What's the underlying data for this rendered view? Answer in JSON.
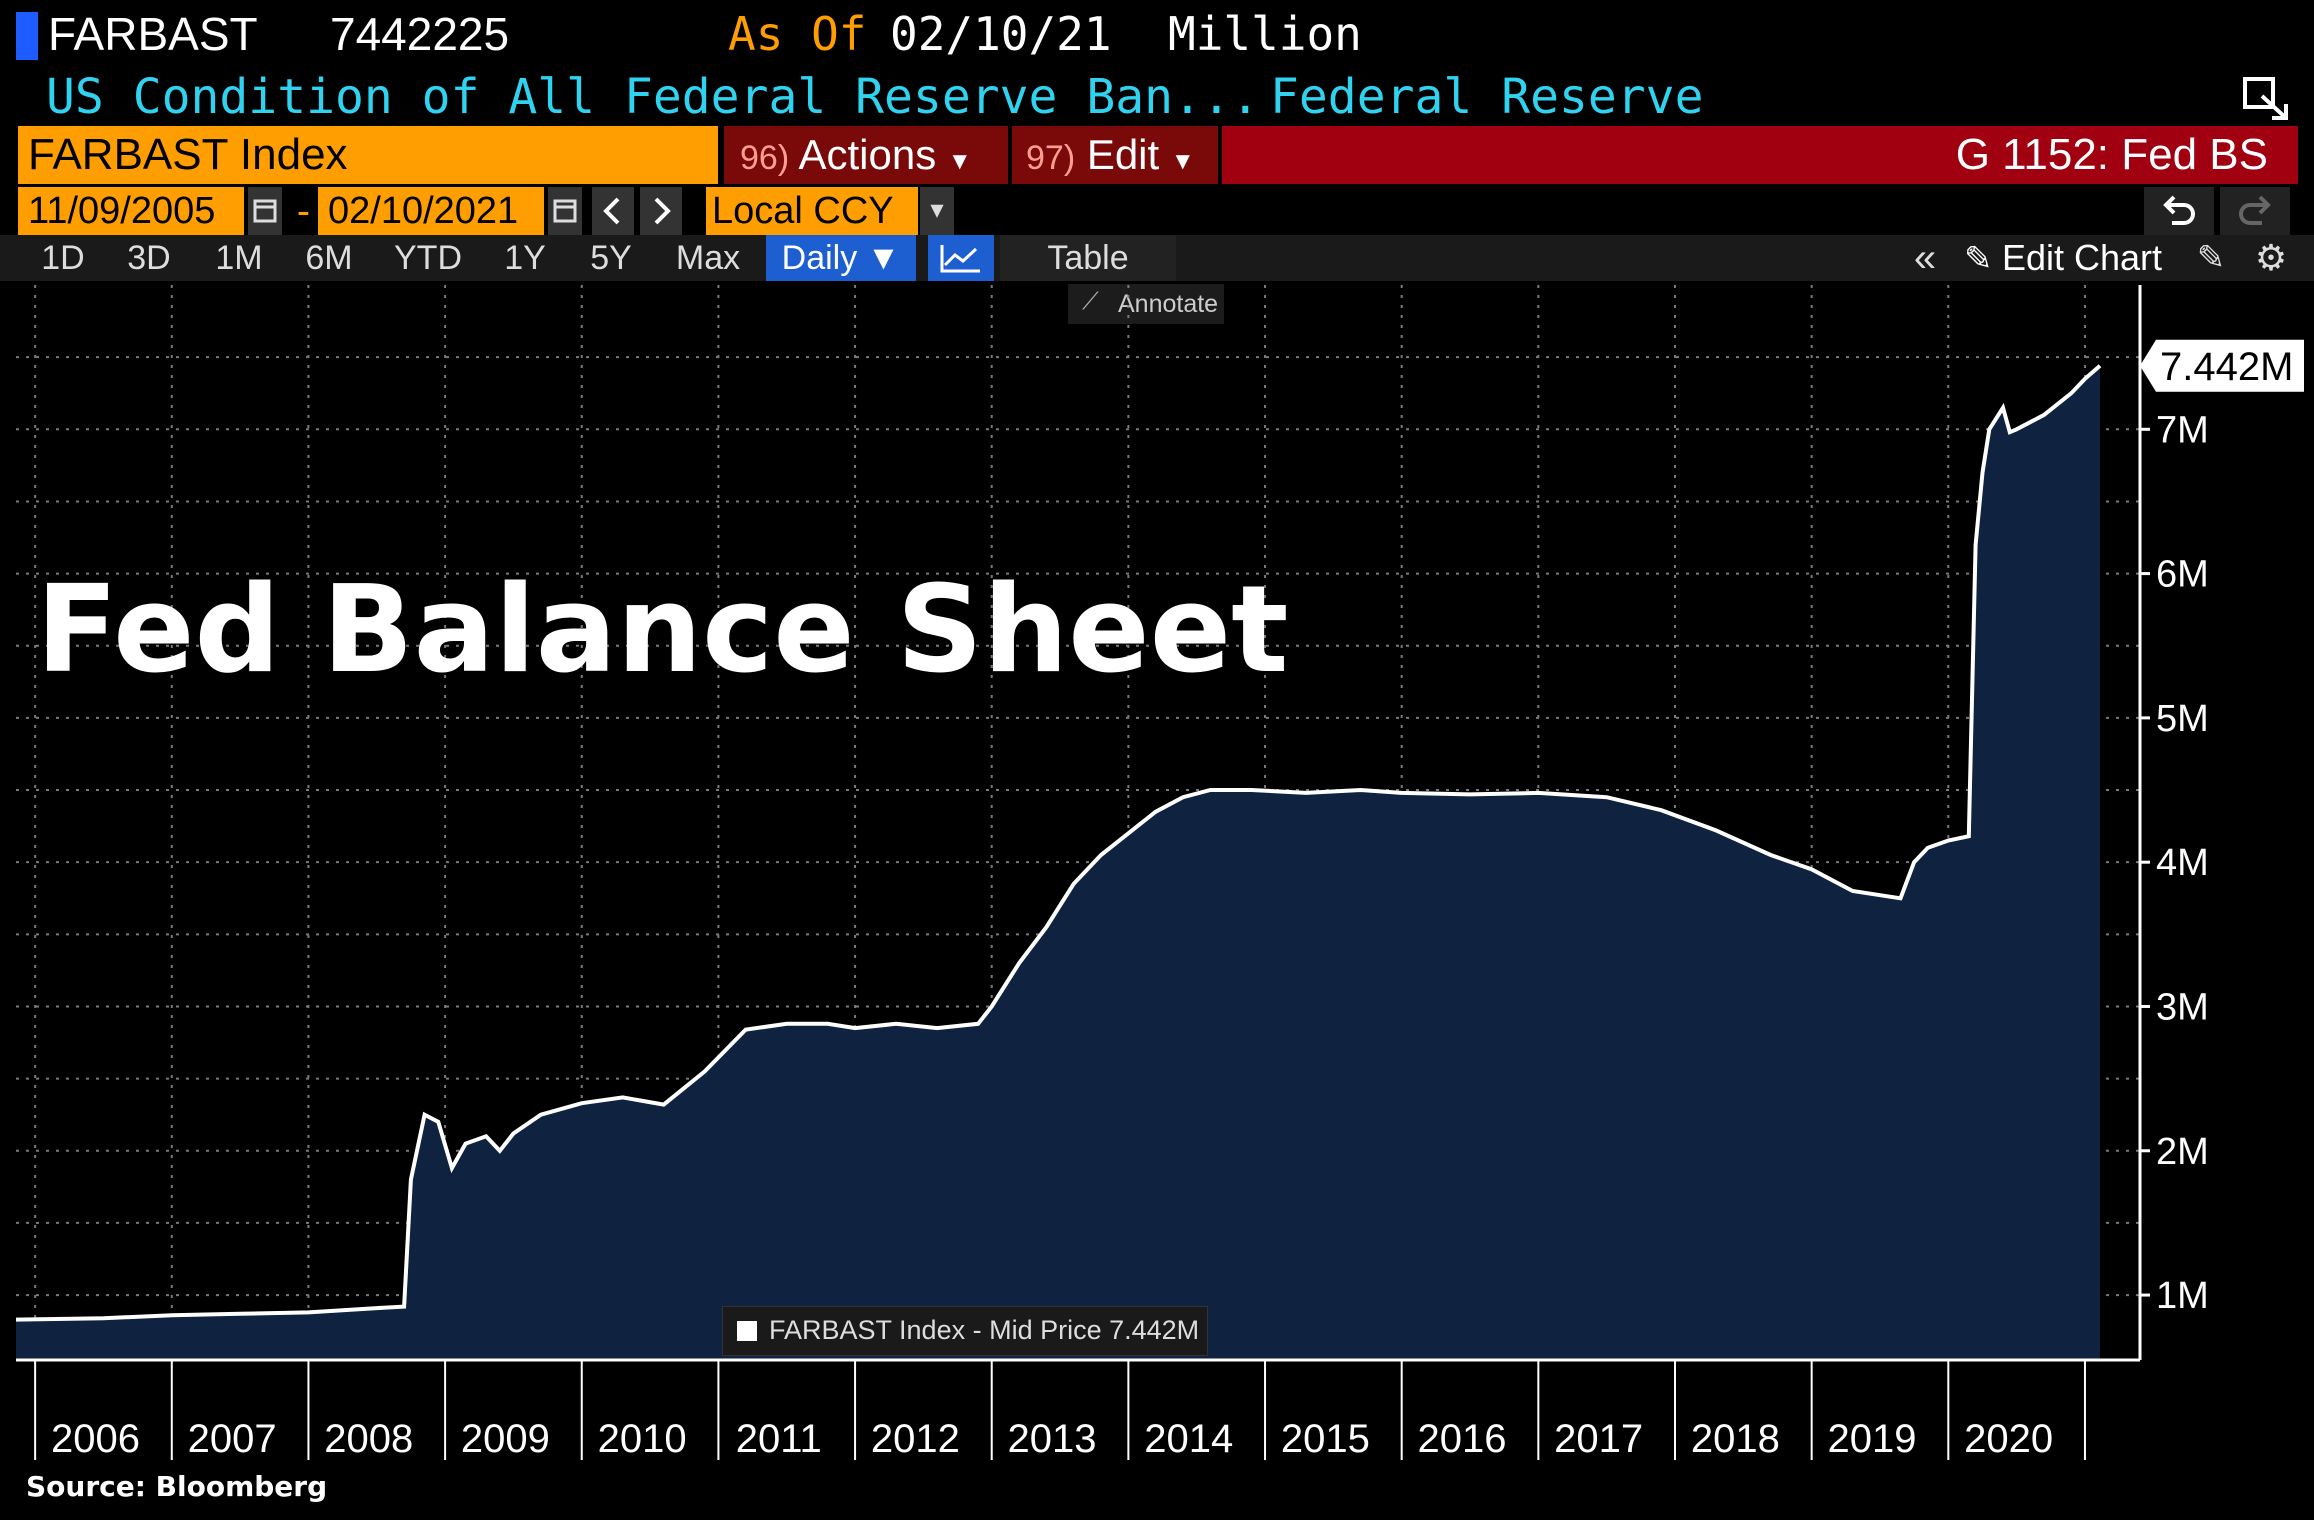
{
  "header": {
    "ticker": "FARBAST",
    "value": "7442225",
    "as_of_label": "As Of",
    "as_of_date": "02/10/21",
    "units": "Million",
    "description": "US Condition of All Federal Reserve Ban...",
    "source_name": "Federal Reserve"
  },
  "toolbar": {
    "security": "FARBAST Index",
    "actions_num": "96)",
    "actions_label": "Actions",
    "edit_num": "97)",
    "edit_label": "Edit",
    "page_code": "G 1152: Fed BS",
    "start_date": "11/09/2005",
    "date_sep": "-",
    "end_date": "02/10/2021",
    "currency": "Local CCY"
  },
  "tabs": [
    "1D",
    "3D",
    "1M",
    "6M",
    "YTD",
    "1Y",
    "5Y",
    "Max"
  ],
  "frequency": "Daily ▼",
  "table_label": "Table",
  "edit_chart_label": "Edit Chart",
  "annotate_label": "Annotate",
  "overlay_title": "Fed Balance Sheet",
  "source": "Source: Bloomberg",
  "colors": {
    "fill": "#0f2240",
    "line": "#ffffff",
    "accent": "#ff9e00",
    "brand_blue": "#1d5fd0",
    "header_cyan": "#2fd3f0"
  },
  "chart_data": {
    "type": "area",
    "title": "",
    "legend": "FARBAST Index - Mid Price 7.442M",
    "last_value_label": "7.442M",
    "ylabel": "",
    "xlabel": "",
    "ylim": [
      0.55,
      8.0
    ],
    "yticks": [
      1,
      2,
      3,
      4,
      5,
      6,
      7
    ],
    "ytick_labels": [
      "1M",
      "2M",
      "3M",
      "4M",
      "5M",
      "6M",
      "7M"
    ],
    "xlim": [
      2005.86,
      2021.11
    ],
    "xtick_labels": [
      "2006",
      "2007",
      "2008",
      "2009",
      "2010",
      "2011",
      "2012",
      "2013",
      "2014",
      "2015",
      "2016",
      "2017",
      "2018",
      "2019",
      "2020"
    ],
    "grid": true,
    "legend_position": "bottom-center",
    "x": [
      2005.86,
      2006.5,
      2007.0,
      2007.5,
      2008.0,
      2008.5,
      2008.7,
      2008.75,
      2008.85,
      2008.95,
      2009.05,
      2009.15,
      2009.3,
      2009.4,
      2009.5,
      2009.7,
      2010.0,
      2010.3,
      2010.6,
      2010.9,
      2011.2,
      2011.5,
      2011.8,
      2012.0,
      2012.3,
      2012.6,
      2012.9,
      2013.0,
      2013.2,
      2013.4,
      2013.6,
      2013.8,
      2014.0,
      2014.2,
      2014.4,
      2014.6,
      2014.9,
      2015.3,
      2015.7,
      2016.0,
      2016.5,
      2017.0,
      2017.5,
      2017.9,
      2018.3,
      2018.7,
      2019.0,
      2019.3,
      2019.65,
      2019.75,
      2019.85,
      2020.0,
      2020.15,
      2020.2,
      2020.25,
      2020.3,
      2020.4,
      2020.45,
      2020.5,
      2020.7,
      2020.9,
      2021.0,
      2021.11
    ],
    "y": [
      0.83,
      0.84,
      0.86,
      0.87,
      0.88,
      0.91,
      0.92,
      1.8,
      2.25,
      2.2,
      1.88,
      2.05,
      2.1,
      2.0,
      2.12,
      2.25,
      2.33,
      2.37,
      2.32,
      2.55,
      2.84,
      2.88,
      2.88,
      2.85,
      2.88,
      2.85,
      2.88,
      3.0,
      3.3,
      3.55,
      3.85,
      4.05,
      4.2,
      4.35,
      4.45,
      4.5,
      4.5,
      4.48,
      4.5,
      4.48,
      4.47,
      4.48,
      4.45,
      4.36,
      4.22,
      4.05,
      3.95,
      3.8,
      3.75,
      4.0,
      4.1,
      4.15,
      4.18,
      6.2,
      6.7,
      7.0,
      7.15,
      6.98,
      7.0,
      7.1,
      7.25,
      7.35,
      7.44
    ]
  }
}
